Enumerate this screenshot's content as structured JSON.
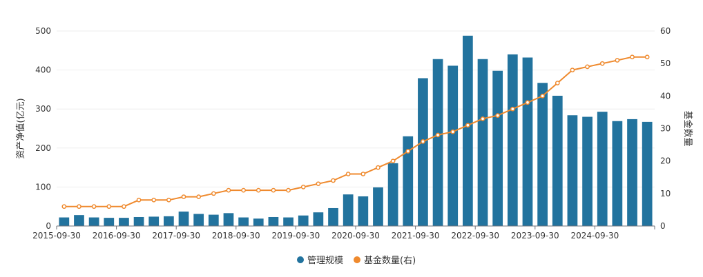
{
  "chart_data": {
    "type": "bar",
    "x": [
      "2015-09-30",
      "2015-12-31",
      "2016-03-31",
      "2016-06-30",
      "2016-09-30",
      "2016-12-31",
      "2017-03-31",
      "2017-06-30",
      "2017-09-30",
      "2017-12-31",
      "2018-03-31",
      "2018-06-30",
      "2018-09-30",
      "2018-12-31",
      "2019-03-31",
      "2019-06-30",
      "2019-09-30",
      "2019-12-31",
      "2020-03-31",
      "2020-06-30",
      "2020-09-30",
      "2020-12-31",
      "2021-03-31",
      "2021-06-30",
      "2021-09-30",
      "2021-12-31",
      "2022-03-31",
      "2022-06-30",
      "2022-09-30",
      "2022-12-31",
      "2023-03-31",
      "2023-06-30",
      "2023-09-30",
      "2023-12-31",
      "2024-03-31",
      "2024-06-30",
      "2024-09-30",
      "2024-12-31",
      "2025-03-31",
      "2025-06-30"
    ],
    "x_tick_labels": [
      "2015-09-30",
      "2016-09-30",
      "2017-09-30",
      "2018-09-30",
      "2019-09-30",
      "2020-09-30",
      "2021-09-30",
      "2022-09-30",
      "2023-09-30",
      "2024-09-30"
    ],
    "series": [
      {
        "name": "管理规模",
        "type": "bar",
        "axis": "left",
        "color": "#22739e",
        "values": [
          22,
          28,
          22,
          21,
          21,
          23,
          24,
          25,
          37,
          31,
          29,
          33,
          22,
          19,
          23,
          22,
          27,
          35,
          46,
          81,
          76,
          99,
          161,
          230,
          379,
          428,
          411,
          488,
          428,
          398,
          440,
          432,
          367,
          334,
          284,
          280,
          293,
          269,
          274,
          267
        ]
      },
      {
        "name": "基金数量(右)",
        "type": "line",
        "axis": "right",
        "color": "#ef8a2e",
        "values": [
          6,
          6,
          6,
          6,
          6,
          8,
          8,
          8,
          9,
          9,
          10,
          11,
          11,
          11,
          11,
          11,
          12,
          13,
          14,
          16,
          16,
          18,
          20,
          23,
          26,
          28,
          29,
          31,
          33,
          34,
          36,
          38,
          40,
          44,
          48,
          49,
          50,
          51,
          52,
          52
        ]
      }
    ],
    "y_left": {
      "label": "资产净值(亿元)",
      "min": 0,
      "max": 500,
      "ticks": [
        0,
        100,
        200,
        300,
        400,
        500
      ]
    },
    "y_right": {
      "label": "基金数量",
      "min": 0,
      "max": 60,
      "ticks": [
        0,
        10,
        20,
        30,
        40,
        50,
        60
      ]
    },
    "grid": true,
    "legend_position": "bottom"
  }
}
